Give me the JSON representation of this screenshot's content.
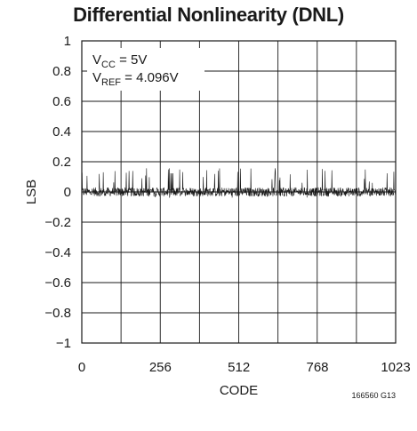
{
  "chart_data": {
    "type": "line",
    "title": "Differential Nonlinearity (DNL)",
    "xlabel": "CODE",
    "ylabel": "LSB",
    "xlim": [
      0,
      1023
    ],
    "ylim": [
      -1,
      1
    ],
    "x_ticks": [
      0,
      256,
      512,
      768,
      1023
    ],
    "y_ticks": [
      1,
      0.8,
      0.6,
      0.4,
      0.2,
      0,
      -0.2,
      -0.4,
      -0.6,
      -0.8,
      -1
    ],
    "y_tick_labels": [
      "1",
      "0.8",
      "0.6",
      "0.4",
      "0.2",
      "0",
      "−0.2",
      "−0.4",
      "−0.6",
      "−0.8",
      "−1"
    ],
    "grid": true,
    "annotations": {
      "vcc": {
        "main": "V",
        "sub": "CC",
        "rest": " = 5V"
      },
      "vref": {
        "main": "V",
        "sub": "REF",
        "rest": " = 4.096V"
      }
    },
    "series": [
      {
        "noise_amplitude_lsb": 0.05,
        "spike_max_lsb": 0.16,
        "spike_min_lsb": -0.04,
        "points": 1024
      }
    ],
    "figure_id": "166560 G13"
  }
}
